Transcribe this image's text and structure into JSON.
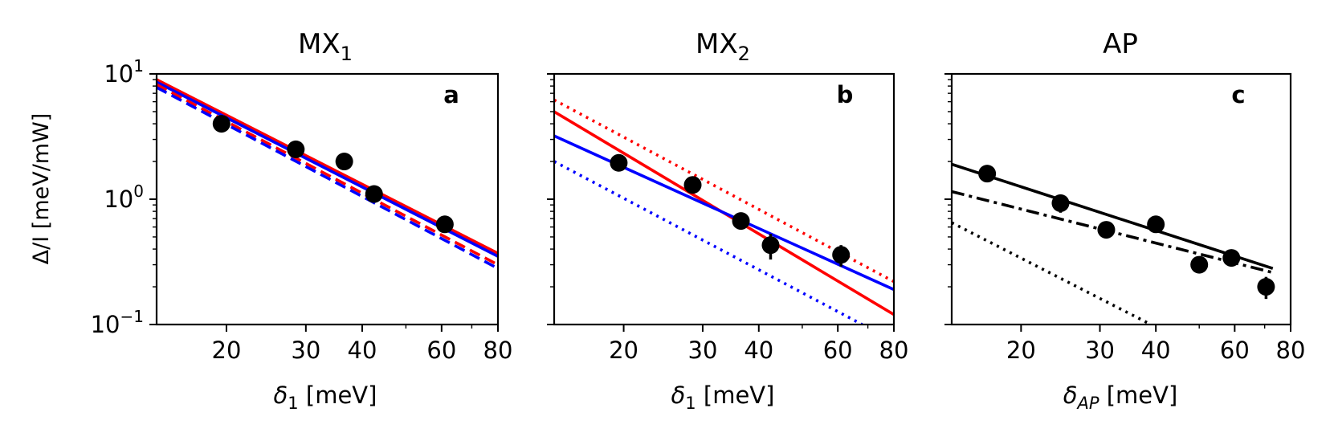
{
  "chart_data": [
    {
      "type": "line",
      "panel_id": "a",
      "title_main": "MX",
      "title_sub": "1",
      "xlabel_main": "δ",
      "xlabel_sub": "1",
      "xlabel_unit": " [meV]",
      "ylabel": "Δ/I [meV/mW]",
      "xscale": "log",
      "yscale": "log",
      "xlim": [
        14,
        80
      ],
      "ylim": [
        0.1,
        10
      ],
      "xticks": [
        20,
        30,
        40,
        60,
        80
      ],
      "xtick_labels": [
        "20",
        "30",
        "40",
        "60",
        "80"
      ],
      "points": [
        {
          "x": 19.5,
          "y": 4.0,
          "err": 0
        },
        {
          "x": 28.5,
          "y": 2.5,
          "err": 0
        },
        {
          "x": 36.5,
          "y": 2.0,
          "err": 0
        },
        {
          "x": 42.5,
          "y": 1.1,
          "err": 0
        },
        {
          "x": 61.0,
          "y": 0.63,
          "err": 0
        }
      ],
      "series": [
        {
          "name": "red solid",
          "color": "#ff0000",
          "dash": "solid",
          "x": [
            14,
            80
          ],
          "y": [
            9.0,
            0.37
          ]
        },
        {
          "name": "blue solid",
          "color": "#0000ff",
          "dash": "solid",
          "x": [
            14,
            80
          ],
          "y": [
            8.6,
            0.35
          ]
        },
        {
          "name": "red dashed",
          "color": "#ff0000",
          "dash": "dashed",
          "x": [
            14,
            80
          ],
          "y": [
            8.2,
            0.3
          ]
        },
        {
          "name": "blue dashed",
          "color": "#0000ff",
          "dash": "dashed",
          "x": [
            14,
            80
          ],
          "y": [
            7.8,
            0.28
          ]
        }
      ]
    },
    {
      "type": "line",
      "panel_id": "b",
      "title_main": "MX",
      "title_sub": "2",
      "xlabel_main": "δ",
      "xlabel_sub": "1",
      "xlabel_unit": " [meV]",
      "xscale": "log",
      "yscale": "log",
      "xlim": [
        14,
        80
      ],
      "ylim": [
        0.1,
        10
      ],
      "xticks": [
        20,
        30,
        40,
        60,
        80
      ],
      "xtick_labels": [
        "20",
        "30",
        "40",
        "60",
        "80"
      ],
      "points": [
        {
          "x": 19.5,
          "y": 1.95,
          "err": 0
        },
        {
          "x": 28.5,
          "y": 1.3,
          "err": 0
        },
        {
          "x": 36.5,
          "y": 0.67,
          "err": 0
        },
        {
          "x": 42.5,
          "y": 0.43,
          "err": 0.1
        },
        {
          "x": 61.0,
          "y": 0.36,
          "err": 0.07
        }
      ],
      "series": [
        {
          "name": "red dotted",
          "color": "#ff0000",
          "dash": "dotted",
          "x": [
            14,
            80
          ],
          "y": [
            6.2,
            0.22
          ]
        },
        {
          "name": "red solid",
          "color": "#ff0000",
          "dash": "solid",
          "x": [
            14,
            80
          ],
          "y": [
            5.0,
            0.12
          ]
        },
        {
          "name": "blue solid",
          "color": "#0000ff",
          "dash": "solid",
          "x": [
            14,
            80
          ],
          "y": [
            3.2,
            0.19
          ]
        },
        {
          "name": "blue dotted",
          "color": "#0000ff",
          "dash": "dotted",
          "x": [
            14,
            68
          ],
          "y": [
            2.0,
            0.1
          ]
        }
      ]
    },
    {
      "type": "line",
      "panel_id": "c",
      "title_main": "AP",
      "title_sub": "",
      "xlabel_main": "δ",
      "xlabel_sub": "AP",
      "xlabel_unit": " [meV]",
      "xscale": "log",
      "yscale": "log",
      "xlim": [
        14,
        80
      ],
      "ylim": [
        0.1,
        10
      ],
      "xticks": [
        20,
        30,
        40,
        60,
        80
      ],
      "xtick_labels": [
        "20",
        "30",
        "40",
        "60",
        "80"
      ],
      "points": [
        {
          "x": 16.8,
          "y": 1.6,
          "err": 0
        },
        {
          "x": 24.5,
          "y": 0.93,
          "err": 0.15
        },
        {
          "x": 31.0,
          "y": 0.57,
          "err": 0
        },
        {
          "x": 40.0,
          "y": 0.63,
          "err": 0
        },
        {
          "x": 50.0,
          "y": 0.3,
          "err": 0
        },
        {
          "x": 59.0,
          "y": 0.34,
          "err": 0
        },
        {
          "x": 70.5,
          "y": 0.2,
          "err": 0.04
        }
      ],
      "series": [
        {
          "name": "black solid",
          "color": "#000000",
          "dash": "solid",
          "x": [
            14,
            73
          ],
          "y": [
            1.9,
            0.28
          ]
        },
        {
          "name": "black dash-dot",
          "color": "#000000",
          "dash": "dashdot",
          "x": [
            14,
            73
          ],
          "y": [
            1.15,
            0.26
          ]
        },
        {
          "name": "black dotted",
          "color": "#000000",
          "dash": "dotted",
          "x": [
            14,
            39
          ],
          "y": [
            0.65,
            0.1
          ]
        }
      ]
    }
  ]
}
